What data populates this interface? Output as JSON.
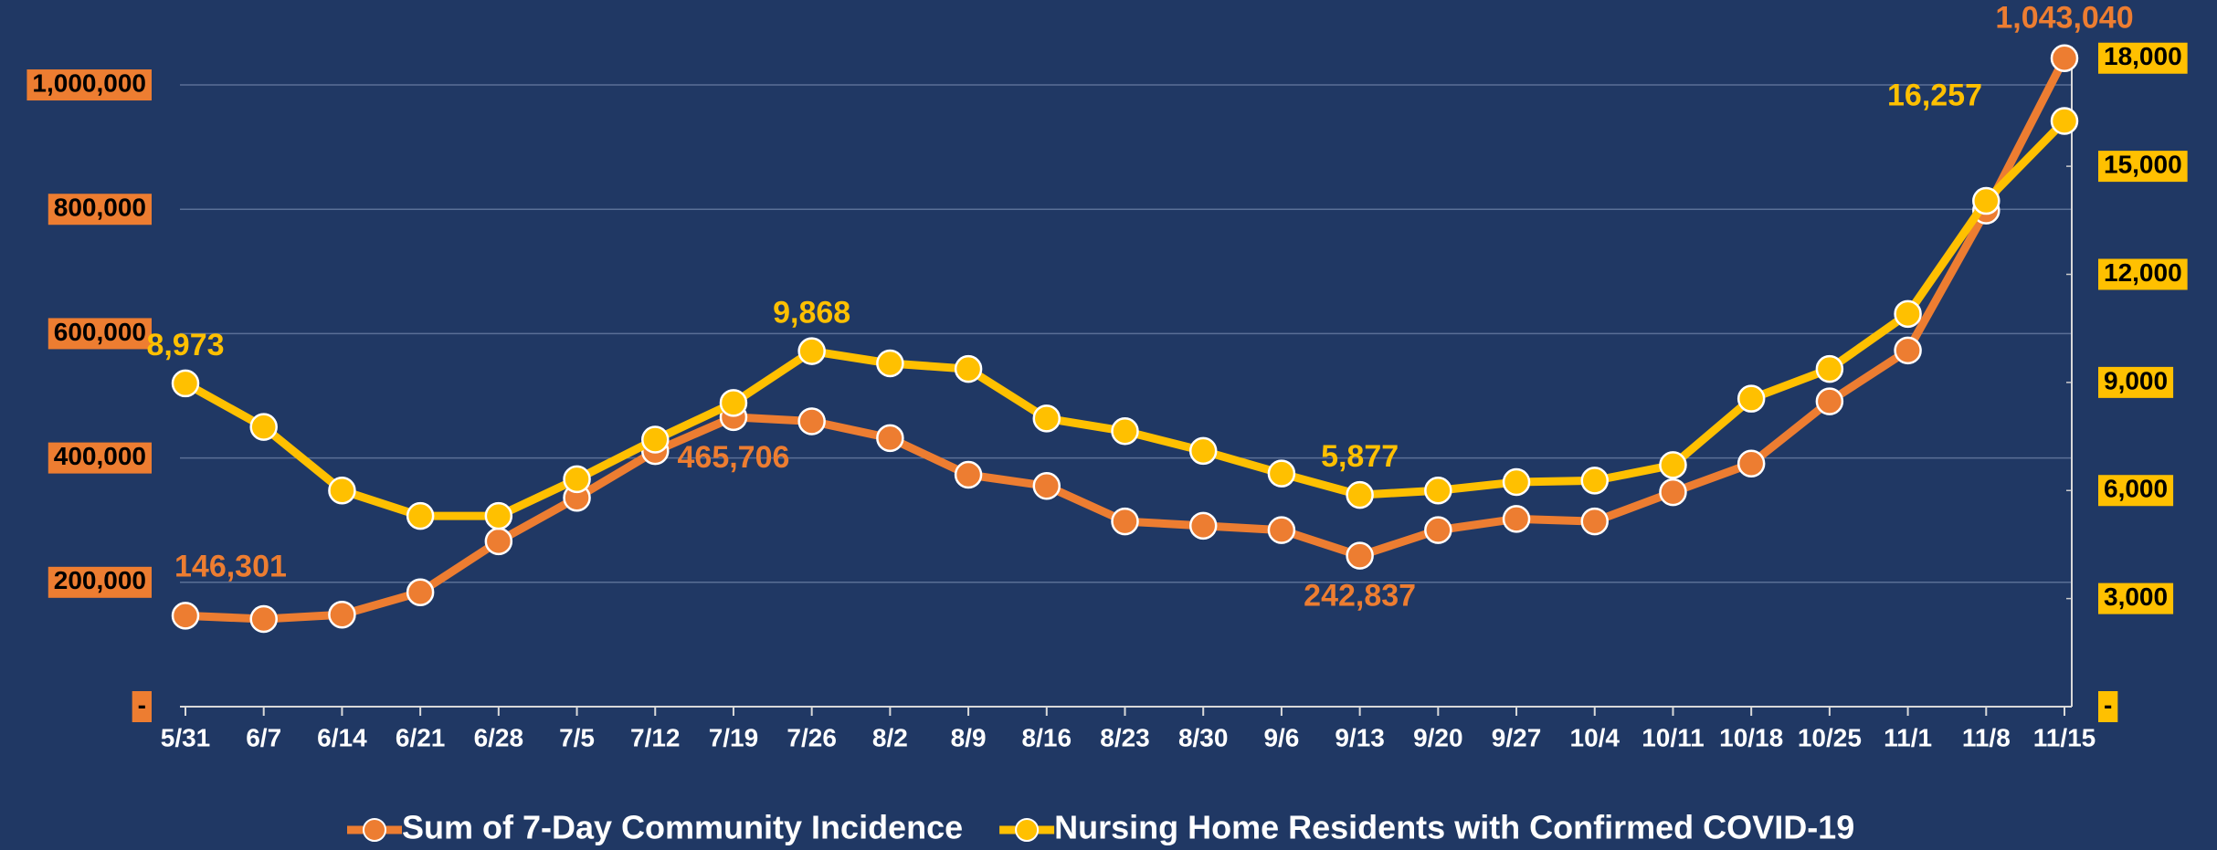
{
  "chart_data": {
    "type": "line",
    "categories": [
      "5/31",
      "6/7",
      "6/14",
      "6/21",
      "6/28",
      "7/5",
      "7/12",
      "7/19",
      "7/26",
      "8/2",
      "8/9",
      "8/16",
      "8/23",
      "8/30",
      "9/6",
      "9/13",
      "9/20",
      "9/27",
      "10/4",
      "10/11",
      "10/18",
      "10/25",
      "11/1",
      "11/8",
      "11/15"
    ],
    "series": [
      {
        "name": "Sum of 7-Day Community Incidence",
        "color": "#ed7d31",
        "axis": "y",
        "values": [
          146301,
          141000,
          148000,
          184000,
          266000,
          336000,
          411000,
          465706,
          459000,
          432000,
          373000,
          355000,
          298000,
          291000,
          284000,
          242837,
          284000,
          302000,
          298000,
          345000,
          391000,
          491000,
          573000,
          798000,
          1043040
        ],
        "value_labels": [
          "146,301",
          null,
          null,
          null,
          null,
          null,
          null,
          "465,706",
          null,
          null,
          null,
          null,
          null,
          null,
          null,
          "242,837",
          null,
          null,
          null,
          null,
          null,
          null,
          null,
          null,
          "1,043,040"
        ]
      },
      {
        "name": "Nursing Home Residents with Confirmed COVID-19",
        "color": "#ffc000",
        "axis": "y2",
        "values": [
          8973,
          7765,
          6000,
          5294,
          5294,
          6314,
          7412,
          8431,
          9868,
          9529,
          9373,
          8000,
          7647,
          7098,
          6471,
          5877,
          6000,
          6235,
          6275,
          6706,
          8549,
          9373,
          10902,
          14039,
          16257
        ],
        "value_labels": [
          "8,973",
          null,
          null,
          null,
          null,
          null,
          null,
          null,
          "9,868",
          null,
          null,
          null,
          null,
          null,
          null,
          "5,877",
          null,
          null,
          null,
          null,
          null,
          null,
          null,
          null,
          "16,257"
        ]
      }
    ],
    "ylim": [
      0,
      1050000
    ],
    "yticks": [
      {
        "value": 0,
        "label": "-"
      },
      {
        "value": 200000,
        "label": "200,000"
      },
      {
        "value": 400000,
        "label": "400,000"
      },
      {
        "value": 600000,
        "label": "600,000"
      },
      {
        "value": 800000,
        "label": "800,000"
      },
      {
        "value": 1000000,
        "label": "1,000,000"
      }
    ],
    "y2lim": [
      0,
      18120
    ],
    "y2ticks": [
      {
        "value": 0,
        "label": "-"
      },
      {
        "value": 3000,
        "label": "3,000"
      },
      {
        "value": 6000,
        "label": "6,000"
      },
      {
        "value": 9000,
        "label": "9,000"
      },
      {
        "value": 12000,
        "label": "12,000"
      },
      {
        "value": 15000,
        "label": "15,000"
      },
      {
        "value": 18000,
        "label": "18,000"
      }
    ],
    "grid": true
  }
}
